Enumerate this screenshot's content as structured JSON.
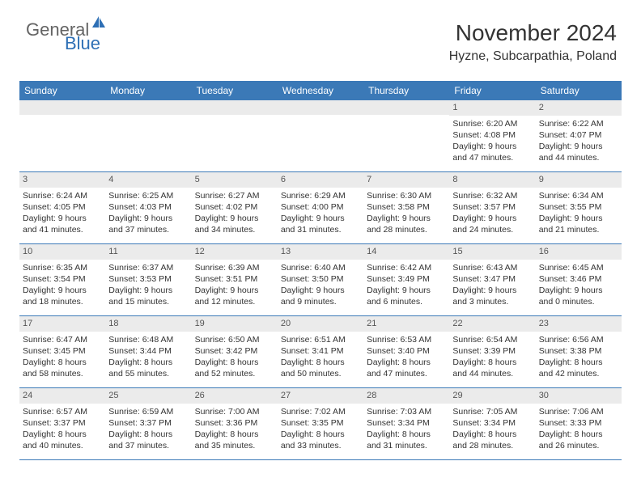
{
  "logo": {
    "text1": "General",
    "text2": "Blue"
  },
  "header": {
    "month": "November 2024",
    "location": "Hyzne, Subcarpathia, Poland"
  },
  "colors": {
    "header_bg": "#3b79b7",
    "header_text": "#ffffff",
    "daynum_bg": "#ebebeb",
    "border": "#3b79b7",
    "logo_gray": "#646464",
    "logo_blue": "#2d6fb5"
  },
  "day_names": [
    "Sunday",
    "Monday",
    "Tuesday",
    "Wednesday",
    "Thursday",
    "Friday",
    "Saturday"
  ],
  "weeks": [
    [
      {
        "n": "",
        "sunrise": "",
        "sunset": "",
        "daylight1": "",
        "daylight2": ""
      },
      {
        "n": "",
        "sunrise": "",
        "sunset": "",
        "daylight1": "",
        "daylight2": ""
      },
      {
        "n": "",
        "sunrise": "",
        "sunset": "",
        "daylight1": "",
        "daylight2": ""
      },
      {
        "n": "",
        "sunrise": "",
        "sunset": "",
        "daylight1": "",
        "daylight2": ""
      },
      {
        "n": "",
        "sunrise": "",
        "sunset": "",
        "daylight1": "",
        "daylight2": ""
      },
      {
        "n": "1",
        "sunrise": "Sunrise: 6:20 AM",
        "sunset": "Sunset: 4:08 PM",
        "daylight1": "Daylight: 9 hours",
        "daylight2": "and 47 minutes."
      },
      {
        "n": "2",
        "sunrise": "Sunrise: 6:22 AM",
        "sunset": "Sunset: 4:07 PM",
        "daylight1": "Daylight: 9 hours",
        "daylight2": "and 44 minutes."
      }
    ],
    [
      {
        "n": "3",
        "sunrise": "Sunrise: 6:24 AM",
        "sunset": "Sunset: 4:05 PM",
        "daylight1": "Daylight: 9 hours",
        "daylight2": "and 41 minutes."
      },
      {
        "n": "4",
        "sunrise": "Sunrise: 6:25 AM",
        "sunset": "Sunset: 4:03 PM",
        "daylight1": "Daylight: 9 hours",
        "daylight2": "and 37 minutes."
      },
      {
        "n": "5",
        "sunrise": "Sunrise: 6:27 AM",
        "sunset": "Sunset: 4:02 PM",
        "daylight1": "Daylight: 9 hours",
        "daylight2": "and 34 minutes."
      },
      {
        "n": "6",
        "sunrise": "Sunrise: 6:29 AM",
        "sunset": "Sunset: 4:00 PM",
        "daylight1": "Daylight: 9 hours",
        "daylight2": "and 31 minutes."
      },
      {
        "n": "7",
        "sunrise": "Sunrise: 6:30 AM",
        "sunset": "Sunset: 3:58 PM",
        "daylight1": "Daylight: 9 hours",
        "daylight2": "and 28 minutes."
      },
      {
        "n": "8",
        "sunrise": "Sunrise: 6:32 AM",
        "sunset": "Sunset: 3:57 PM",
        "daylight1": "Daylight: 9 hours",
        "daylight2": "and 24 minutes."
      },
      {
        "n": "9",
        "sunrise": "Sunrise: 6:34 AM",
        "sunset": "Sunset: 3:55 PM",
        "daylight1": "Daylight: 9 hours",
        "daylight2": "and 21 minutes."
      }
    ],
    [
      {
        "n": "10",
        "sunrise": "Sunrise: 6:35 AM",
        "sunset": "Sunset: 3:54 PM",
        "daylight1": "Daylight: 9 hours",
        "daylight2": "and 18 minutes."
      },
      {
        "n": "11",
        "sunrise": "Sunrise: 6:37 AM",
        "sunset": "Sunset: 3:53 PM",
        "daylight1": "Daylight: 9 hours",
        "daylight2": "and 15 minutes."
      },
      {
        "n": "12",
        "sunrise": "Sunrise: 6:39 AM",
        "sunset": "Sunset: 3:51 PM",
        "daylight1": "Daylight: 9 hours",
        "daylight2": "and 12 minutes."
      },
      {
        "n": "13",
        "sunrise": "Sunrise: 6:40 AM",
        "sunset": "Sunset: 3:50 PM",
        "daylight1": "Daylight: 9 hours",
        "daylight2": "and 9 minutes."
      },
      {
        "n": "14",
        "sunrise": "Sunrise: 6:42 AM",
        "sunset": "Sunset: 3:49 PM",
        "daylight1": "Daylight: 9 hours",
        "daylight2": "and 6 minutes."
      },
      {
        "n": "15",
        "sunrise": "Sunrise: 6:43 AM",
        "sunset": "Sunset: 3:47 PM",
        "daylight1": "Daylight: 9 hours",
        "daylight2": "and 3 minutes."
      },
      {
        "n": "16",
        "sunrise": "Sunrise: 6:45 AM",
        "sunset": "Sunset: 3:46 PM",
        "daylight1": "Daylight: 9 hours",
        "daylight2": "and 0 minutes."
      }
    ],
    [
      {
        "n": "17",
        "sunrise": "Sunrise: 6:47 AM",
        "sunset": "Sunset: 3:45 PM",
        "daylight1": "Daylight: 8 hours",
        "daylight2": "and 58 minutes."
      },
      {
        "n": "18",
        "sunrise": "Sunrise: 6:48 AM",
        "sunset": "Sunset: 3:44 PM",
        "daylight1": "Daylight: 8 hours",
        "daylight2": "and 55 minutes."
      },
      {
        "n": "19",
        "sunrise": "Sunrise: 6:50 AM",
        "sunset": "Sunset: 3:42 PM",
        "daylight1": "Daylight: 8 hours",
        "daylight2": "and 52 minutes."
      },
      {
        "n": "20",
        "sunrise": "Sunrise: 6:51 AM",
        "sunset": "Sunset: 3:41 PM",
        "daylight1": "Daylight: 8 hours",
        "daylight2": "and 50 minutes."
      },
      {
        "n": "21",
        "sunrise": "Sunrise: 6:53 AM",
        "sunset": "Sunset: 3:40 PM",
        "daylight1": "Daylight: 8 hours",
        "daylight2": "and 47 minutes."
      },
      {
        "n": "22",
        "sunrise": "Sunrise: 6:54 AM",
        "sunset": "Sunset: 3:39 PM",
        "daylight1": "Daylight: 8 hours",
        "daylight2": "and 44 minutes."
      },
      {
        "n": "23",
        "sunrise": "Sunrise: 6:56 AM",
        "sunset": "Sunset: 3:38 PM",
        "daylight1": "Daylight: 8 hours",
        "daylight2": "and 42 minutes."
      }
    ],
    [
      {
        "n": "24",
        "sunrise": "Sunrise: 6:57 AM",
        "sunset": "Sunset: 3:37 PM",
        "daylight1": "Daylight: 8 hours",
        "daylight2": "and 40 minutes."
      },
      {
        "n": "25",
        "sunrise": "Sunrise: 6:59 AM",
        "sunset": "Sunset: 3:37 PM",
        "daylight1": "Daylight: 8 hours",
        "daylight2": "and 37 minutes."
      },
      {
        "n": "26",
        "sunrise": "Sunrise: 7:00 AM",
        "sunset": "Sunset: 3:36 PM",
        "daylight1": "Daylight: 8 hours",
        "daylight2": "and 35 minutes."
      },
      {
        "n": "27",
        "sunrise": "Sunrise: 7:02 AM",
        "sunset": "Sunset: 3:35 PM",
        "daylight1": "Daylight: 8 hours",
        "daylight2": "and 33 minutes."
      },
      {
        "n": "28",
        "sunrise": "Sunrise: 7:03 AM",
        "sunset": "Sunset: 3:34 PM",
        "daylight1": "Daylight: 8 hours",
        "daylight2": "and 31 minutes."
      },
      {
        "n": "29",
        "sunrise": "Sunrise: 7:05 AM",
        "sunset": "Sunset: 3:34 PM",
        "daylight1": "Daylight: 8 hours",
        "daylight2": "and 28 minutes."
      },
      {
        "n": "30",
        "sunrise": "Sunrise: 7:06 AM",
        "sunset": "Sunset: 3:33 PM",
        "daylight1": "Daylight: 8 hours",
        "daylight2": "and 26 minutes."
      }
    ]
  ]
}
